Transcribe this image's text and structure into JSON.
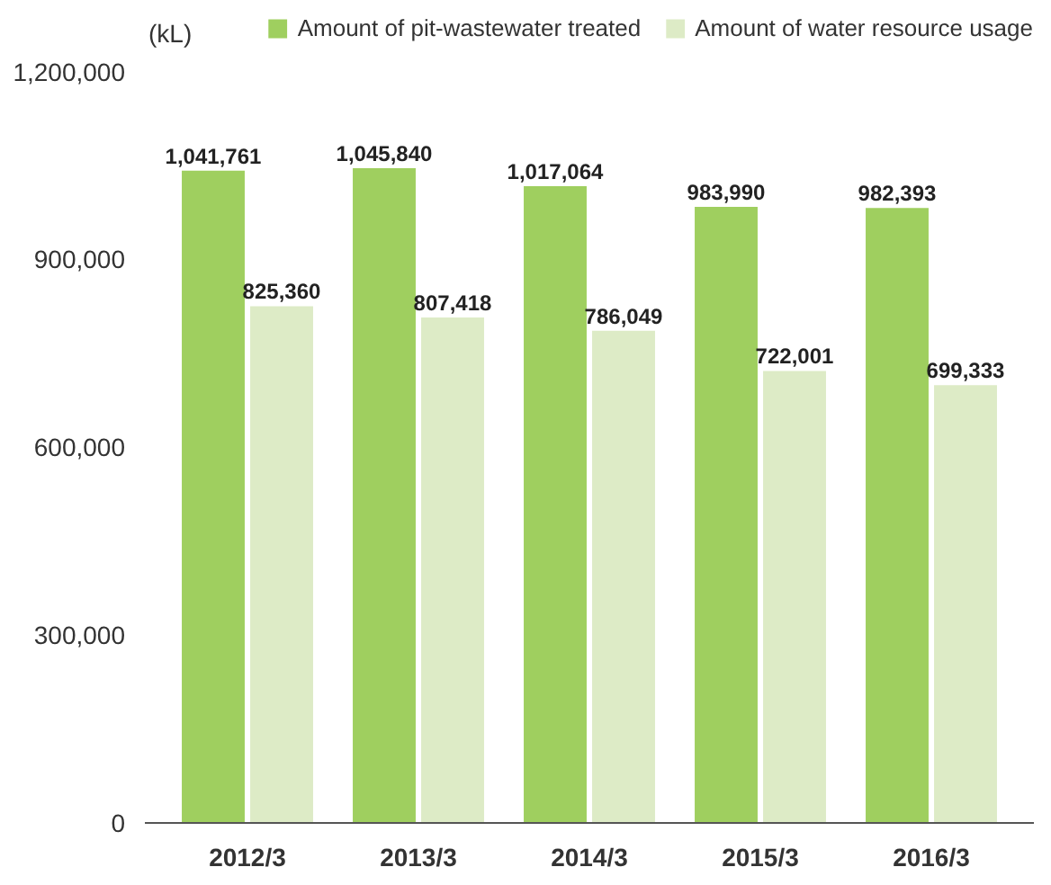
{
  "chart_data": {
    "type": "bar",
    "ylabel": "(kL)",
    "categories": [
      "2012/3",
      "2013/3",
      "2014/3",
      "2015/3",
      "2016/3"
    ],
    "series": [
      {
        "name": "Amount of pit-wastewater treated",
        "color": "#9fcf5f",
        "values": [
          1041761,
          1045840,
          1017064,
          983990,
          982393
        ],
        "value_labels": [
          "1,041,761",
          "1,045,840",
          "1,017,064",
          "983,990",
          "982,393"
        ]
      },
      {
        "name": "Amount of water resource usage",
        "color": "#ddebc6",
        "values": [
          825360,
          807418,
          786049,
          722001,
          699333
        ],
        "value_labels": [
          "825,360",
          "807,418",
          "786,049",
          "722,001",
          "699,333"
        ]
      }
    ],
    "ylim": [
      0,
      1290000
    ],
    "yticks": [
      {
        "value": 0,
        "label": "0"
      },
      {
        "value": 300000,
        "label": "300,000"
      },
      {
        "value": 600000,
        "label": "600,000"
      },
      {
        "value": 900000,
        "label": "900,000"
      },
      {
        "value": 1200000,
        "label": "1,200,000"
      }
    ],
    "grid": false,
    "legend": "top right"
  }
}
